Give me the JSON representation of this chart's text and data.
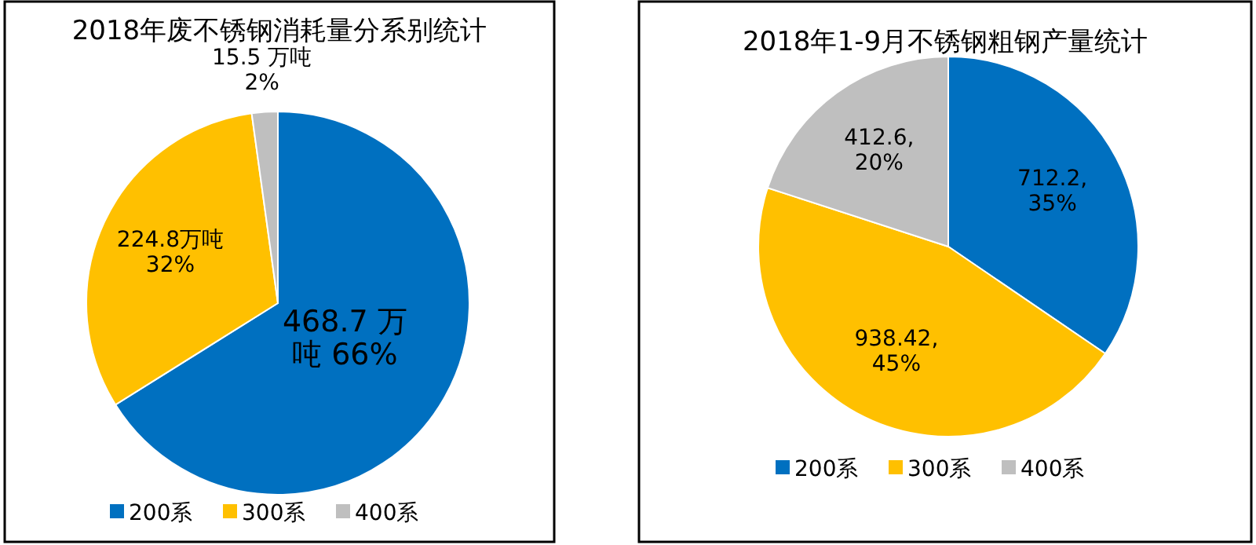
{
  "chart_data": [
    {
      "type": "pie",
      "title": "2018年废不锈钢消耗量分系别统计",
      "categories": [
        "200系",
        "300系",
        "400系"
      ],
      "values": [
        468.7,
        224.8,
        15.5
      ],
      "colors": [
        "#0070c0",
        "#ffc000",
        "#bfbfbf"
      ],
      "value_labels": [
        "468.7 万吨 66%",
        "224.8万吨 32%",
        "15.5 万吨 2%"
      ],
      "legend": "bottom"
    },
    {
      "type": "pie",
      "title": "2018年1-9月不锈钢粗钢产量统计",
      "categories": [
        "200系",
        "300系",
        "400系"
      ],
      "values": [
        712.2,
        938.42,
        412.6
      ],
      "colors": [
        "#0070c0",
        "#ffc000",
        "#bfbfbf"
      ],
      "value_labels": [
        "712.2, 35%",
        "938.42, 45%",
        "412.6, 20%"
      ],
      "legend": "bottom"
    }
  ]
}
